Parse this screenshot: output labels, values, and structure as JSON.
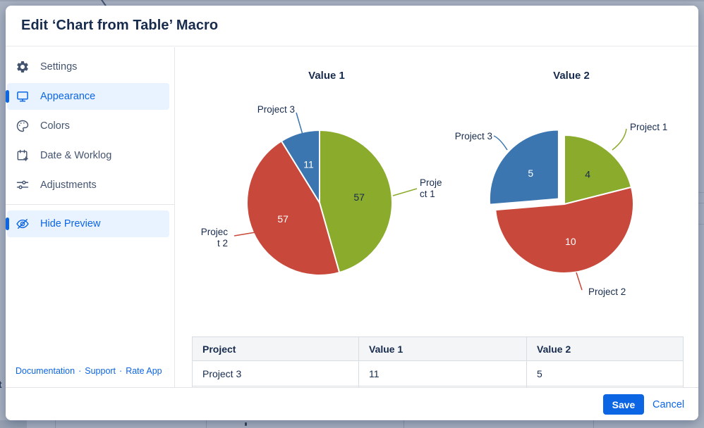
{
  "dialog": {
    "title": "Edit ‘Chart from Table’ Macro"
  },
  "sidebar": {
    "items": [
      {
        "label": "Settings",
        "icon": "gear",
        "selected": false
      },
      {
        "label": "Appearance",
        "icon": "monitor",
        "selected": true
      },
      {
        "label": "Colors",
        "icon": "palette",
        "selected": false
      },
      {
        "label": "Date & Worklog",
        "icon": "calendar-plus",
        "selected": false
      },
      {
        "label": "Adjustments",
        "icon": "sliders",
        "selected": false
      },
      {
        "label": "Hide Preview",
        "icon": "eye-off",
        "selected": true
      }
    ],
    "footer_links": [
      "Documentation",
      "Support",
      "Rate App"
    ],
    "link_separator": "·"
  },
  "chart_data": [
    {
      "type": "pie",
      "title": "Value 1",
      "labels": [
        "Project 1",
        "Project 2",
        "Project 3"
      ],
      "values": [
        57,
        57,
        11
      ],
      "colors": [
        "#8bab2c",
        "#c8483b",
        "#3b76b0"
      ],
      "value_label_colors": [
        "#172b4d",
        "#ffffff",
        "#ffffff"
      ],
      "start_angle_deg": 0,
      "direction": "clockwise",
      "explode_index": null,
      "callout_lines": [
        [
          "Proje",
          "ct 1"
        ],
        [
          "Projec",
          "t 2"
        ],
        [
          "Project 3"
        ]
      ]
    },
    {
      "type": "pie",
      "title": "Value 2",
      "labels": [
        "Project 1",
        "Project 2",
        "Project 3"
      ],
      "values": [
        4,
        10,
        5
      ],
      "colors": [
        "#8bab2c",
        "#c8483b",
        "#3b76b0"
      ],
      "value_label_colors": [
        "#172b4d",
        "#ffffff",
        "#ffffff"
      ],
      "start_angle_deg": 0,
      "direction": "clockwise",
      "explode_index": 2,
      "callout_lines": [
        [
          "Project 1"
        ],
        [
          "Project 2"
        ],
        [
          "Project 3"
        ]
      ]
    }
  ],
  "preview_table": {
    "headers": [
      "Project",
      "Value 1",
      "Value 2"
    ],
    "rows": [
      [
        "Project 3",
        "11",
        "5"
      ]
    ]
  },
  "footer_bar": {
    "save_label": "Save",
    "cancel_label": "Cancel"
  },
  "colors": {
    "accent_blue": "#0c66e4",
    "selected_item_bg": "#e9f2ff",
    "heading_text": "#172b4d",
    "sidebar_text": "#44546f",
    "page_background": "#a9b2c1",
    "table_border": "#d8dce3",
    "table_header_bg": "#f4f5f7",
    "pie_green": "#8bab2c",
    "pie_red": "#c8483b",
    "pie_blue": "#3b76b0"
  },
  "background": {
    "partial_text_left_edge": "t"
  }
}
